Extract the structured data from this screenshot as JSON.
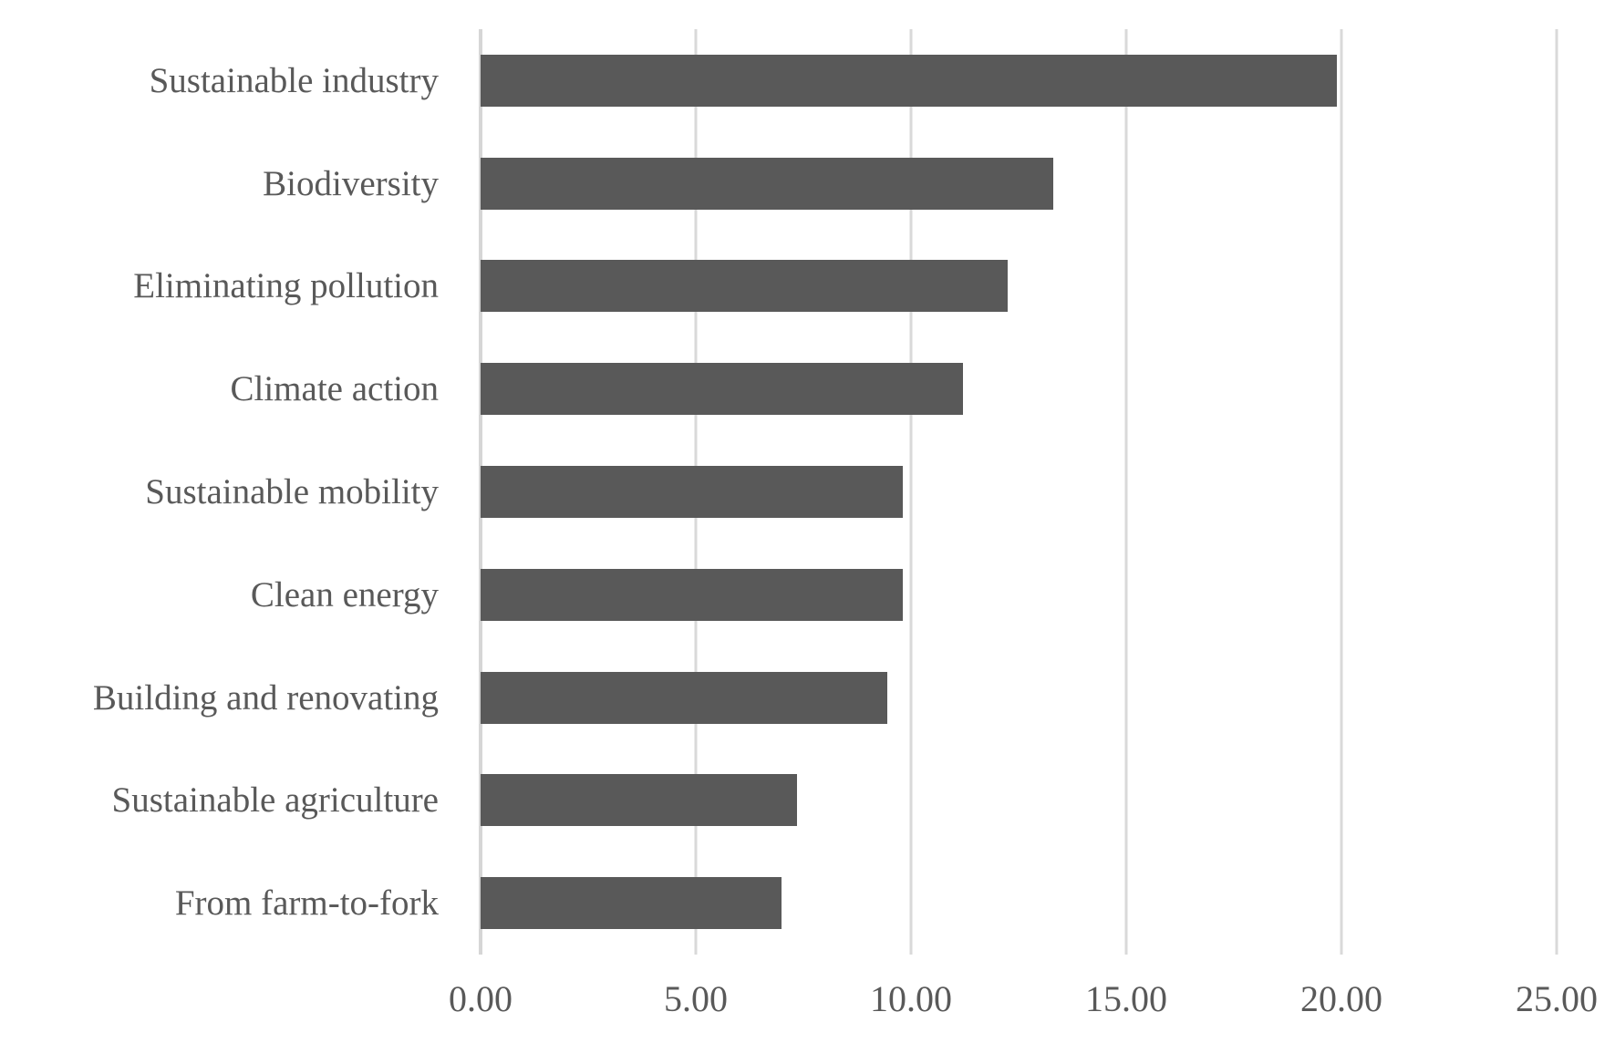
{
  "chart_data": {
    "type": "bar",
    "orientation": "horizontal",
    "title": "",
    "xlabel": "",
    "ylabel": "",
    "categories": [
      "Sustainable industry",
      "Biodiversity",
      "Eliminating pollution",
      "Climate action",
      "Sustainable mobility",
      "Clean energy",
      "Building and renovating",
      "Sustainable agriculture",
      "From farm-to-fork"
    ],
    "values": [
      19.9,
      13.3,
      12.25,
      11.2,
      9.8,
      9.8,
      9.45,
      7.35,
      7.0
    ],
    "xlim": [
      0,
      25
    ],
    "x_ticks": [
      0,
      5,
      10,
      15,
      20,
      25
    ],
    "x_tick_labels": [
      "0.00",
      "5.00",
      "10.00",
      "15.00",
      "20.00",
      "25.00"
    ],
    "grid": "vertical-only",
    "legend": "none",
    "colors": {
      "bar": "#595959",
      "gridline": "#d9d9d9",
      "axis_line": "#d6d6d6",
      "text": "#595959",
      "background": "#ffffff"
    }
  }
}
